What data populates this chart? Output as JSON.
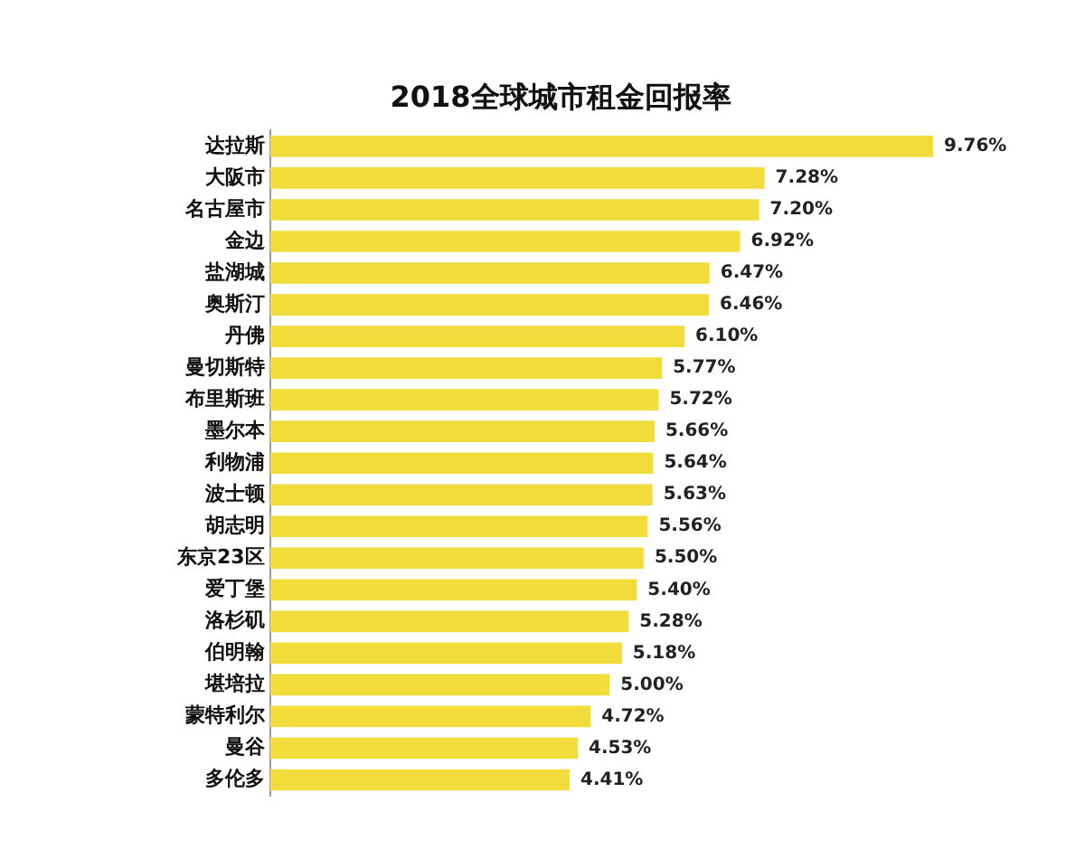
{
  "chart_data": {
    "type": "bar",
    "orientation": "horizontal",
    "title": "2018全球城市租金回报率",
    "categories": [
      "达拉斯",
      "大阪市",
      "名古屋市",
      "金边",
      "盐湖城",
      "奥斯汀",
      "丹佛",
      "曼切斯特",
      "布里斯班",
      "墨尔本",
      "利物浦",
      "波士顿",
      "胡志明",
      "东京23区",
      "爱丁堡",
      "洛杉矶",
      "伯明翰",
      "堪培拉",
      "蒙特利尔",
      "曼谷",
      "多伦多"
    ],
    "values": [
      9.76,
      7.28,
      7.2,
      6.92,
      6.47,
      6.46,
      6.1,
      5.77,
      5.72,
      5.66,
      5.64,
      5.63,
      5.56,
      5.5,
      5.4,
      5.28,
      5.18,
      5.0,
      4.72,
      4.53,
      4.41
    ],
    "value_labels": [
      "9.76%",
      "7.28%",
      "7.20%",
      "6.92%",
      "6.47%",
      "6.46%",
      "6.10%",
      "5.77%",
      "5.72%",
      "5.66%",
      "5.64%",
      "5.63%",
      "5.56%",
      "5.50%",
      "5.40%",
      "5.28%",
      "5.18%",
      "5.00%",
      "4.72%",
      "4.53%",
      "4.41%"
    ],
    "color": "#f2dc3c",
    "legend": false
  }
}
